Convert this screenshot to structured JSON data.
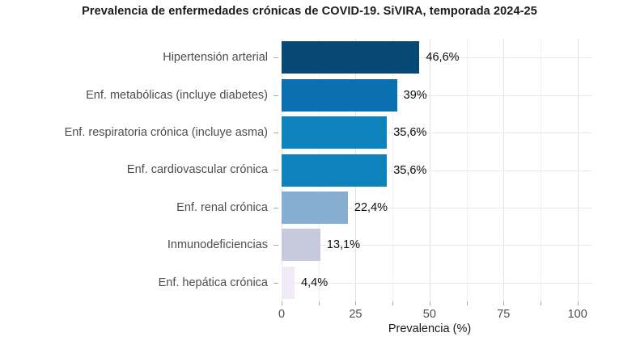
{
  "chart_data": {
    "type": "bar",
    "orientation": "horizontal",
    "title": "Prevalencia de enfermedades crónicas de COVID-19. SiVIRA, temporada 2024-25",
    "xlabel": "Prevalencia (%)",
    "xlim": [
      0,
      105
    ],
    "x_major_ticks": [
      0,
      25,
      50,
      75,
      100
    ],
    "x_tick_labels": [
      "0",
      "25",
      "50",
      "75",
      "100"
    ],
    "x_minor_ticks": [
      12.5,
      37.5,
      62.5,
      87.5
    ],
    "grid": "vertical major+minor, horizontal at category centers",
    "legend": false,
    "categories": [
      "Hipertensión arterial",
      "Enf. metabólicas (incluye diabetes)",
      "Enf. respiratoria crónica (incluye asma)",
      "Enf. cardiovascular crónica",
      "Enf. renal crónica",
      "Inmunodeficiencias",
      "Enf. hepática crónica"
    ],
    "values": [
      46.6,
      39,
      35.6,
      35.6,
      22.4,
      13.1,
      4.4
    ],
    "value_labels": [
      "46,6%",
      "39%",
      "35,6%",
      "35,6%",
      "22,4%",
      "13,1%",
      "4,4%"
    ],
    "bar_colors": [
      "#074972",
      "#0a70b0",
      "#0e82ba",
      "#0e82ba",
      "#86aed3",
      "#c7c9dd",
      "#efeaf5"
    ]
  },
  "colors": {
    "title_text": "#1a1a1a",
    "axis_title_text": "#1a1a1a",
    "category_text": "#4d4d4d",
    "tick_label_text": "#4d4d4d",
    "value_text": "#0d0d0d",
    "grid_major": "#e3e3e3",
    "grid_minor": "#f1f1f1",
    "grid_horizontal": "#e8e8e8",
    "tick_mark": "#ababab",
    "background": "#ffffff"
  }
}
